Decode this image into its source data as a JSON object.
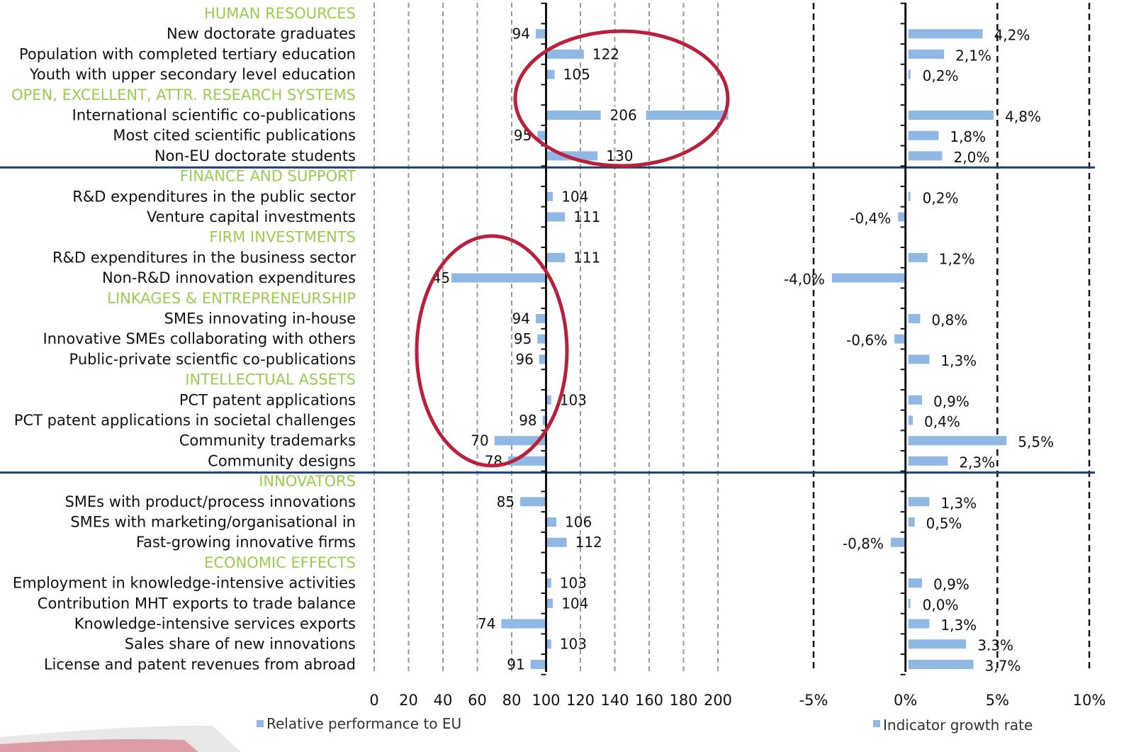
{
  "colors": {
    "bar": "#8fb8e4",
    "section": "#9ccc4f",
    "separator": "#1b3f6e",
    "circle": "#b8203c",
    "axis": "#111111"
  },
  "chart_data": [
    {
      "type": "bar",
      "orientation": "horizontal",
      "legend": "Relative performance to EU",
      "xlim": [
        0,
        200
      ],
      "tick_labels": [
        "0",
        "20",
        "40",
        "60",
        "80",
        "100",
        "120",
        "140",
        "160",
        "180",
        "200"
      ],
      "rows": [
        {
          "section": "HUMAN RESOURCES"
        },
        {
          "label": "New doctorate graduates",
          "value": 94
        },
        {
          "label": "Population with completed tertiary education",
          "value": 122
        },
        {
          "label": "Youth with upper secondary level education",
          "value": 105
        },
        {
          "section": "OPEN, EXCELLENT, ATTR. RESEARCH SYSTEMS"
        },
        {
          "label": "International scientific co-publications",
          "value": 206
        },
        {
          "label": "Most cited scientific publications",
          "value": 95
        },
        {
          "label": "Non-EU doctorate students",
          "value": 130
        },
        {
          "section": "FINANCE AND SUPPORT"
        },
        {
          "label": "R&D expenditures in the public sector",
          "value": 104
        },
        {
          "label": "Venture capital investments",
          "value": 111
        },
        {
          "section": "FIRM INVESTMENTS"
        },
        {
          "label": "R&D expenditures in the business sector",
          "value": 111
        },
        {
          "label": "Non-R&D innovation expenditures",
          "value": 45
        },
        {
          "section": "LINKAGES & ENTREPRENEURSHIP"
        },
        {
          "label": "SMEs innovating in-house",
          "value": 94
        },
        {
          "label": "Innovative SMEs collaborating with others",
          "value": 95
        },
        {
          "label": "Public-private scientfic co-publications",
          "value": 96
        },
        {
          "section": "INTELLECTUAL ASSETS"
        },
        {
          "label": "PCT patent applications",
          "value": 103
        },
        {
          "label": "PCT patent applications in societal challenges",
          "value": 98
        },
        {
          "label": "Community trademarks",
          "value": 70
        },
        {
          "label": "Community designs",
          "value": 78
        },
        {
          "section": "INNOVATORS"
        },
        {
          "label": "SMEs with product/process innovations",
          "value": 85
        },
        {
          "label": "SMEs with marketing/organisational in",
          "value": 106
        },
        {
          "label": "Fast-growing innovative firms",
          "value": 112
        },
        {
          "section": "ECONOMIC EFFECTS"
        },
        {
          "label": "Employment in knowledge-intensive activities",
          "value": 103
        },
        {
          "label": "Contribution MHT exports to trade balance",
          "value": 104
        },
        {
          "label": "Knowledge-intensive services exports",
          "value": 74
        },
        {
          "label": "Sales share of new innovations",
          "value": 103
        },
        {
          "label": "License and patent revenues from abroad",
          "value": 91
        }
      ]
    },
    {
      "type": "bar",
      "orientation": "horizontal",
      "legend": "Indicator growth rate",
      "xlim": [
        -5,
        10
      ],
      "unit": "%",
      "tick_labels": [
        "-5%",
        "0%",
        "5%",
        "10%"
      ],
      "values": [
        {
          "value": 4.2,
          "text": "4,2%"
        },
        {
          "value": 2.1,
          "text": "2,1%"
        },
        {
          "value": 0.2,
          "text": "0,2%"
        },
        {
          "value": 4.8,
          "text": "4,8%"
        },
        {
          "value": 1.8,
          "text": "1,8%"
        },
        {
          "value": 2.0,
          "text": "2,0%"
        },
        {
          "value": 0.2,
          "text": "0,2%"
        },
        {
          "value": -0.4,
          "text": "-0,4%"
        },
        {
          "value": 1.2,
          "text": "1,2%"
        },
        {
          "value": -4.0,
          "text": "-4,0%"
        },
        {
          "value": 0.8,
          "text": "0,8%"
        },
        {
          "value": -0.6,
          "text": "-0,6%"
        },
        {
          "value": 1.3,
          "text": "1,3%"
        },
        {
          "value": 0.9,
          "text": "0,9%"
        },
        {
          "value": 0.4,
          "text": "0,4%"
        },
        {
          "value": 5.5,
          "text": "5,5%"
        },
        {
          "value": 2.3,
          "text": "2,3%"
        },
        {
          "value": 1.3,
          "text": "1,3%"
        },
        {
          "value": 0.5,
          "text": "0,5%"
        },
        {
          "value": -0.8,
          "text": "-0,8%"
        },
        {
          "value": 0.9,
          "text": "0,9%"
        },
        {
          "value": 0.0,
          "text": "0,0%"
        },
        {
          "value": 1.3,
          "text": "1,3%"
        },
        {
          "value": 3.3,
          "text": "3.3%"
        },
        {
          "value": 3.7,
          "text": "3,7%"
        }
      ]
    }
  ]
}
